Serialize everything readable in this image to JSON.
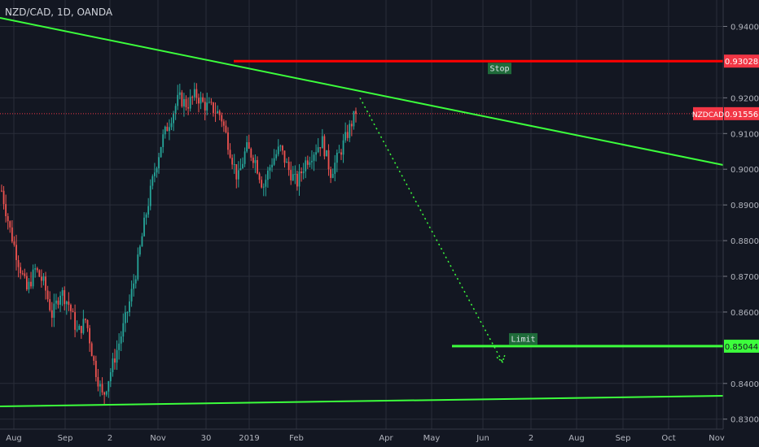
{
  "header": {
    "symbol": "NZD/CAD, 1D, OANDA"
  },
  "chart_data": {
    "type": "candlestick",
    "symbol": "NZDCAD",
    "current_price": 0.91556,
    "ylim": [
      0.8275,
      0.9475
    ],
    "price_ticks": [
      "0.94000",
      "0.92000",
      "0.91000",
      "0.90000",
      "0.89000",
      "0.88000",
      "0.87000",
      "0.86000",
      "0.84000",
      "0.83000"
    ],
    "time_ticks": [
      "Aug",
      "Sep",
      "2",
      "Nov",
      "30",
      "2019",
      "Feb",
      "Apr",
      "May",
      "Jun",
      "2",
      "Aug",
      "Sep",
      "Oct",
      "Nov"
    ],
    "price_labels": [
      {
        "value": "0.93028",
        "color": "#f23645"
      },
      {
        "value": "0.91556",
        "color": "#f23645",
        "tag": "NZDCAD"
      },
      {
        "value": "0.85044",
        "color": "#3cff3c"
      }
    ],
    "levels": [
      {
        "label": "Stop",
        "price": 0.93028,
        "color": "#ff0000"
      },
      {
        "label": "Limit",
        "price": 0.85044,
        "color": "#3cff3c"
      }
    ],
    "trendlines": [
      {
        "name": "upper",
        "color": "#3cff3c"
      },
      {
        "name": "lower",
        "color": "#3cff3c"
      }
    ],
    "projection": {
      "from": 0.92,
      "to": 0.846,
      "color": "#3cff3c",
      "style": "dotted"
    },
    "candles_bull_color": "#26a69a",
    "candles_bear_color": "#ef5350",
    "candles_anchors": [
      0.894,
      0.883,
      0.874,
      0.866,
      0.872,
      0.868,
      0.859,
      0.866,
      0.862,
      0.854,
      0.858,
      0.845,
      0.836,
      0.844,
      0.852,
      0.861,
      0.872,
      0.886,
      0.898,
      0.908,
      0.914,
      0.92,
      0.918,
      0.921,
      0.918,
      0.917,
      0.915,
      0.906,
      0.897,
      0.906,
      0.903,
      0.895,
      0.902,
      0.906,
      0.9,
      0.896,
      0.902,
      0.905,
      0.908,
      0.899,
      0.904,
      0.91,
      0.916
    ]
  }
}
